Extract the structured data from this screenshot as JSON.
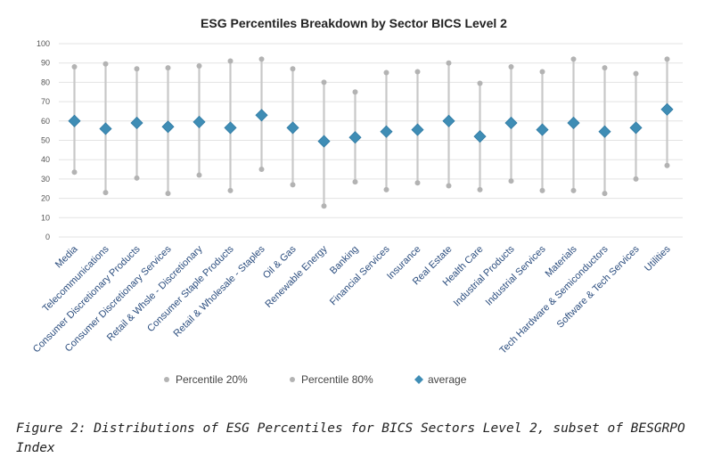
{
  "caption": "Figure 2: Distributions of ESG Percentiles for BICS Sectors Level 2, subset of BESGRPO Index",
  "chart_data": {
    "type": "scatter",
    "title": "ESG Percentiles Breakdown by Sector BICS Level 2",
    "xlabel": "",
    "ylabel": "",
    "ylim": [
      0,
      100
    ],
    "yticks": [
      0,
      10,
      20,
      30,
      40,
      50,
      60,
      70,
      80,
      90,
      100
    ],
    "grid": true,
    "legend_position": "bottom",
    "categories": [
      "Media",
      "Telecommunications",
      "Consumer Discretionary Products",
      "Consumer Discretionary Services",
      "Retail & Whsle - Discretionary",
      "Consumer Staple Products",
      "Retail & Wholesale - Staples",
      "Oil & Gas",
      "Renewable Energy",
      "Banking",
      "Financial Services",
      "Insurance",
      "Real Estate",
      "Health Care",
      "Industrial Products",
      "Industrial Services",
      "Materials",
      "Tech Hardware & Semiconductors",
      "Software & Tech Services",
      "Utilities"
    ],
    "series": [
      {
        "name": "Percentile 20%",
        "color": "#b3b3b3",
        "marker": "circle",
        "values": [
          33.5,
          23,
          30.5,
          22.5,
          32,
          24,
          35,
          27,
          16,
          28.5,
          24.5,
          28,
          26.5,
          24.5,
          29,
          24,
          24,
          22.5,
          30,
          37
        ]
      },
      {
        "name": "Percentile 80%",
        "color": "#b3b3b3",
        "marker": "circle",
        "values": [
          88,
          89.5,
          87,
          87.5,
          88.5,
          91,
          92,
          87,
          80,
          75,
          85,
          85.5,
          90,
          79.5,
          88,
          85.5,
          92,
          87.5,
          84.5,
          92
        ]
      },
      {
        "name": "average",
        "color": "#3f8db5",
        "marker": "diamond",
        "values": [
          60,
          56,
          59,
          57,
          59.5,
          56.5,
          63,
          56.5,
          49.5,
          51.5,
          54.5,
          55.5,
          60,
          52,
          59,
          55.5,
          59,
          54.5,
          56.5,
          66
        ]
      }
    ],
    "range_line_color": "#c8c8c8",
    "grid_color": "#e3e3e3"
  }
}
